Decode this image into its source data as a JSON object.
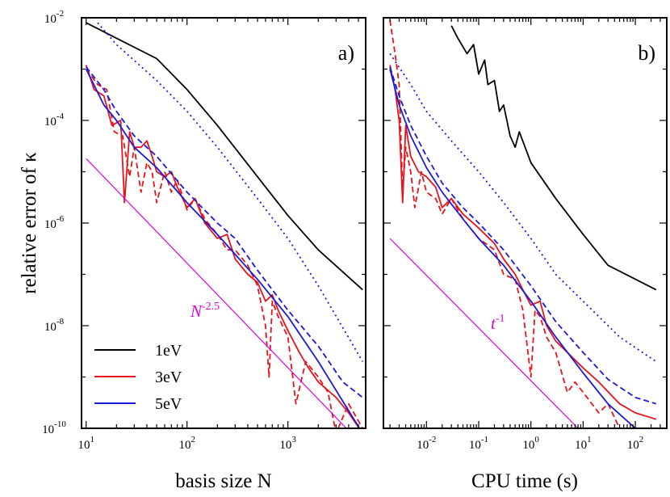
{
  "colors": {
    "black": "#000000",
    "red": "#e8141b",
    "blue": "#1a1ad8",
    "magenta": "#e000e0"
  },
  "labels": {
    "ylabel": "relative error of κ",
    "xlabel_a": "basis size N",
    "xlabel_b": "CPU time (s)",
    "panel_a": "a)",
    "panel_b": "b)",
    "guide_a": "N",
    "guide_a_exp": "-2.5",
    "guide_b": "t",
    "guide_b_exp": "-1",
    "legend": [
      "1eV",
      "3eV",
      "5eV"
    ]
  },
  "chart_data": [
    {
      "type": "line",
      "panel": "a)",
      "xlabel": "basis size N",
      "ylabel": "relative error of κ",
      "xscale": "log",
      "yscale": "log",
      "xlim": [
        9,
        5900
      ],
      "ylim": [
        1e-10,
        0.01
      ],
      "xticks": [
        {
          "base": "10",
          "exp": "1",
          "v": 10
        },
        {
          "base": "10",
          "exp": "2",
          "v": 100
        },
        {
          "base": "10",
          "exp": "3",
          "v": 1000
        }
      ],
      "yticks": [
        {
          "base": "10",
          "exp": "-2",
          "v": 0.01
        },
        {
          "base": "10",
          "exp": "-4",
          "v": 0.0001
        },
        {
          "base": "10",
          "exp": "-6",
          "v": 1e-06
        },
        {
          "base": "10",
          "exp": "-8",
          "v": 1e-08
        },
        {
          "base": "10",
          "exp": "-10",
          "v": 1e-10
        }
      ],
      "legend": {
        "entries": [
          "1eV",
          "3eV",
          "5eV"
        ],
        "position": "bottom-left"
      },
      "guide": {
        "label": "N^-2.5",
        "points": [
          [
            10,
            1.8e-05
          ],
          [
            3800,
            1e-10
          ]
        ],
        "color": "#e000e0"
      },
      "series": [
        {
          "name": "1eV",
          "color": "#000000",
          "style": "solid",
          "points": [
            [
              10,
              0.008
            ],
            [
              20,
              0.004
            ],
            [
              50,
              0.0016
            ],
            [
              100,
              0.0004
            ],
            [
              200,
              8e-05
            ],
            [
              500,
              8e-06
            ],
            [
              1000,
              1.4e-06
            ],
            [
              2000,
              3e-07
            ],
            [
              5500,
              5e-08
            ]
          ]
        },
        {
          "color": "#1a1ad8",
          "style": "dotted",
          "points": [
            [
              13,
              0.008
            ],
            [
              20,
              0.003
            ],
            [
              50,
              0.0006
            ],
            [
              100,
              0.00015
            ],
            [
              200,
              3e-05
            ],
            [
              500,
              3e-06
            ],
            [
              1000,
              5e-07
            ],
            [
              2000,
              6e-08
            ],
            [
              5500,
              2e-09
            ]
          ]
        },
        {
          "name": "3eV",
          "color": "#e8141b",
          "style": "solid",
          "points": [
            [
              10,
              0.0012
            ],
            [
              12,
              0.0004
            ],
            [
              15,
              0.0003
            ],
            [
              18,
              8e-05
            ],
            [
              22,
              0.0001
            ],
            [
              24,
              2.5e-06
            ],
            [
              27,
              6e-05
            ],
            [
              30,
              3e-05
            ],
            [
              35,
              3e-05
            ],
            [
              40,
              4e-05
            ],
            [
              45,
              2e-05
            ],
            [
              50,
              1e-05
            ],
            [
              60,
              8e-06
            ],
            [
              70,
              1e-05
            ],
            [
              80,
              5e-06
            ],
            [
              100,
              2e-06
            ],
            [
              120,
              3e-06
            ],
            [
              150,
              1e-06
            ],
            [
              200,
              5e-07
            ],
            [
              250,
              6e-07
            ],
            [
              300,
              2e-07
            ],
            [
              400,
              1e-07
            ],
            [
              500,
              7e-08
            ],
            [
              600,
              3e-08
            ],
            [
              700,
              4e-08
            ],
            [
              800,
              2e-08
            ],
            [
              1000,
              8e-09
            ],
            [
              1300,
              3e-09
            ],
            [
              1600,
              1.5e-09
            ],
            [
              2000,
              8e-10
            ],
            [
              3000,
              4e-10
            ],
            [
              4000,
              2e-10
            ],
            [
              5500,
              8e-11
            ]
          ]
        },
        {
          "color": "#e8141b",
          "style": "dashed",
          "points": [
            [
              10,
              0.001
            ],
            [
              13,
              0.0005
            ],
            [
              16,
              0.0004
            ],
            [
              19,
              6e-05
            ],
            [
              23,
              5e-05
            ],
            [
              27,
              8e-06
            ],
            [
              30,
              3e-05
            ],
            [
              35,
              4e-06
            ],
            [
              40,
              1.5e-05
            ],
            [
              45,
              1e-05
            ],
            [
              50,
              2.5e-06
            ],
            [
              60,
              1e-05
            ],
            [
              70,
              4e-06
            ],
            [
              80,
              7e-06
            ],
            [
              100,
              1.8e-06
            ],
            [
              120,
              3e-06
            ],
            [
              150,
              1.2e-06
            ],
            [
              200,
              6e-07
            ],
            [
              250,
              3e-07
            ],
            [
              300,
              3e-07
            ],
            [
              400,
              1.5e-07
            ],
            [
              500,
              6e-08
            ],
            [
              600,
              1e-08
            ],
            [
              650,
              1e-09
            ],
            [
              700,
              3e-08
            ],
            [
              800,
              1.5e-08
            ],
            [
              1000,
              6e-09
            ],
            [
              1200,
              3e-10
            ],
            [
              1500,
              2e-09
            ],
            [
              2000,
              1e-09
            ],
            [
              2500,
              5e-10
            ],
            [
              3000,
              8e-11
            ],
            [
              4000,
              3e-10
            ],
            [
              5500,
              1e-10
            ]
          ]
        },
        {
          "name": "5eV",
          "color": "#1a1ad8",
          "style": "solid",
          "points": [
            [
              10,
              0.001
            ],
            [
              15,
              0.0002
            ],
            [
              20,
              0.0001
            ],
            [
              30,
              3e-05
            ],
            [
              50,
              1.2e-05
            ],
            [
              100,
              2.5e-06
            ],
            [
              200,
              6e-07
            ],
            [
              500,
              8e-08
            ],
            [
              1000,
              1.5e-08
            ],
            [
              2000,
              2e-09
            ],
            [
              5500,
              8e-11
            ]
          ]
        },
        {
          "color": "#1a1ad8",
          "style": "dashed",
          "points": [
            [
              10,
              0.0011
            ],
            [
              15,
              0.0004
            ],
            [
              20,
              0.00015
            ],
            [
              30,
              5e-05
            ],
            [
              50,
              2e-05
            ],
            [
              100,
              4e-06
            ],
            [
              200,
              1e-06
            ],
            [
              300,
              5e-07
            ],
            [
              500,
              1.2e-07
            ],
            [
              1000,
              2e-08
            ],
            [
              2000,
              4e-09
            ],
            [
              3500,
              8e-10
            ],
            [
              5500,
              4e-10
            ]
          ]
        }
      ]
    },
    {
      "type": "line",
      "panel": "b)",
      "xlabel": "CPU time (s)",
      "xscale": "log",
      "yscale": "log",
      "xlim": [
        0.0015,
        400
      ],
      "ylim": [
        1e-10,
        0.01
      ],
      "xticks": [
        {
          "base": "10",
          "exp": "-2",
          "v": 0.01
        },
        {
          "base": "10",
          "exp": "-1",
          "v": 0.1
        },
        {
          "base": "10",
          "exp": "0",
          "v": 1
        },
        {
          "base": "10",
          "exp": "1",
          "v": 10
        },
        {
          "base": "10",
          "exp": "2",
          "v": 100
        }
      ],
      "yticks": [
        {
          "v": 0.01
        },
        {
          "v": 0.0001
        },
        {
          "v": 1e-06
        },
        {
          "v": 1e-08
        },
        {
          "v": 1e-10
        }
      ],
      "guide": {
        "label": "t^-1",
        "points": [
          [
            0.002,
            5e-07
          ],
          [
            8,
            1e-10
          ]
        ],
        "color": "#e000e0"
      },
      "series": [
        {
          "name": "1eV",
          "color": "#000000",
          "style": "solid",
          "points": [
            [
              0.03,
              0.007
            ],
            [
              0.04,
              0.004
            ],
            [
              0.06,
              0.002
            ],
            [
              0.08,
              0.003
            ],
            [
              0.1,
              0.0008
            ],
            [
              0.13,
              0.0015
            ],
            [
              0.15,
              0.0005
            ],
            [
              0.2,
              0.0006
            ],
            [
              0.25,
              0.00015
            ],
            [
              0.3,
              0.0002
            ],
            [
              0.4,
              5e-05
            ],
            [
              0.5,
              3e-05
            ],
            [
              0.6,
              6e-05
            ],
            [
              1,
              1.5e-05
            ],
            [
              3,
              3e-06
            ],
            [
              10,
              6e-07
            ],
            [
              30,
              1.5e-07
            ],
            [
              250,
              5e-08
            ]
          ]
        },
        {
          "color": "#1a1ad8",
          "style": "dotted",
          "points": [
            [
              0.002,
              0.002
            ],
            [
              0.005,
              0.0005
            ],
            [
              0.01,
              0.00015
            ],
            [
              0.03,
              4e-05
            ],
            [
              0.1,
              1e-05
            ],
            [
              0.3,
              2.5e-06
            ],
            [
              1,
              5e-07
            ],
            [
              3,
              1e-07
            ],
            [
              10,
              3e-08
            ],
            [
              50,
              6e-09
            ],
            [
              250,
              2e-09
            ]
          ]
        },
        {
          "color": "#e8141b",
          "style": "solid",
          "points": [
            [
              0.002,
              0.0012
            ],
            [
              0.0025,
              0.0004
            ],
            [
              0.003,
              0.0001
            ],
            [
              0.0035,
              2.5e-06
            ],
            [
              0.004,
              8e-05
            ],
            [
              0.005,
              2e-05
            ],
            [
              0.007,
              1e-05
            ],
            [
              0.01,
              8e-06
            ],
            [
              0.015,
              5e-06
            ],
            [
              0.02,
              2e-06
            ],
            [
              0.03,
              3e-06
            ],
            [
              0.05,
              1.5e-06
            ],
            [
              0.1,
              8e-07
            ],
            [
              0.2,
              4e-07
            ],
            [
              0.3,
              2e-07
            ],
            [
              0.5,
              1e-07
            ],
            [
              0.7,
              5e-08
            ],
            [
              1,
              2.5e-08
            ],
            [
              1.5,
              3e-08
            ],
            [
              2,
              1e-08
            ],
            [
              3,
              5e-09
            ],
            [
              5,
              3e-09
            ],
            [
              10,
              1.5e-09
            ],
            [
              20,
              8e-10
            ],
            [
              50,
              3e-10
            ],
            [
              100,
              2e-10
            ],
            [
              250,
              1.5e-10
            ]
          ]
        },
        {
          "color": "#e8141b",
          "style": "dashed",
          "points": [
            [
              0.002,
              0.009
            ],
            [
              0.0025,
              0.002
            ],
            [
              0.003,
              0.0005
            ],
            [
              0.0035,
              4e-06
            ],
            [
              0.004,
              3e-05
            ],
            [
              0.005,
              1e-05
            ],
            [
              0.006,
              2e-06
            ],
            [
              0.008,
              1e-05
            ],
            [
              0.01,
              4e-06
            ],
            [
              0.015,
              3e-06
            ],
            [
              0.02,
              1.5e-06
            ],
            [
              0.03,
              3e-06
            ],
            [
              0.05,
              1.2e-06
            ],
            [
              0.1,
              5e-07
            ],
            [
              0.2,
              3e-07
            ],
            [
              0.3,
              1e-07
            ],
            [
              0.5,
              8e-08
            ],
            [
              0.7,
              2e-08
            ],
            [
              1,
              1e-09
            ],
            [
              1.2,
              2e-08
            ],
            [
              1.5,
              1.5e-08
            ],
            [
              2,
              6e-09
            ],
            [
              3,
              3e-09
            ],
            [
              5,
              5e-10
            ],
            [
              7,
              8e-10
            ],
            [
              10,
              5e-10
            ],
            [
              20,
              2e-10
            ],
            [
              30,
              3e-10
            ],
            [
              50,
              1e-10
            ],
            [
              100,
              8e-11
            ],
            [
              200,
              6e-11
            ]
          ]
        },
        {
          "color": "#1a1ad8",
          "style": "solid",
          "points": [
            [
              0.002,
              0.001
            ],
            [
              0.003,
              0.0002
            ],
            [
              0.005,
              5e-05
            ],
            [
              0.01,
              1.2e-05
            ],
            [
              0.02,
              4e-06
            ],
            [
              0.05,
              1.2e-06
            ],
            [
              0.1,
              5e-07
            ],
            [
              0.3,
              1.5e-07
            ],
            [
              1,
              3e-08
            ],
            [
              3,
              6e-09
            ],
            [
              10,
              1.2e-09
            ],
            [
              30,
              3e-10
            ],
            [
              100,
              1e-10
            ],
            [
              250,
              5e-11
            ]
          ]
        },
        {
          "color": "#1a1ad8",
          "style": "dashed",
          "points": [
            [
              0.002,
              0.0011
            ],
            [
              0.003,
              0.0003
            ],
            [
              0.005,
              8e-05
            ],
            [
              0.01,
              2e-05
            ],
            [
              0.02,
              6e-06
            ],
            [
              0.05,
              2e-06
            ],
            [
              0.1,
              1e-06
            ],
            [
              0.3,
              3e-07
            ],
            [
              1,
              6e-08
            ],
            [
              3,
              1.2e-08
            ],
            [
              10,
              3e-09
            ],
            [
              30,
              9e-10
            ],
            [
              100,
              4e-10
            ],
            [
              250,
              3e-10
            ]
          ]
        }
      ]
    }
  ]
}
